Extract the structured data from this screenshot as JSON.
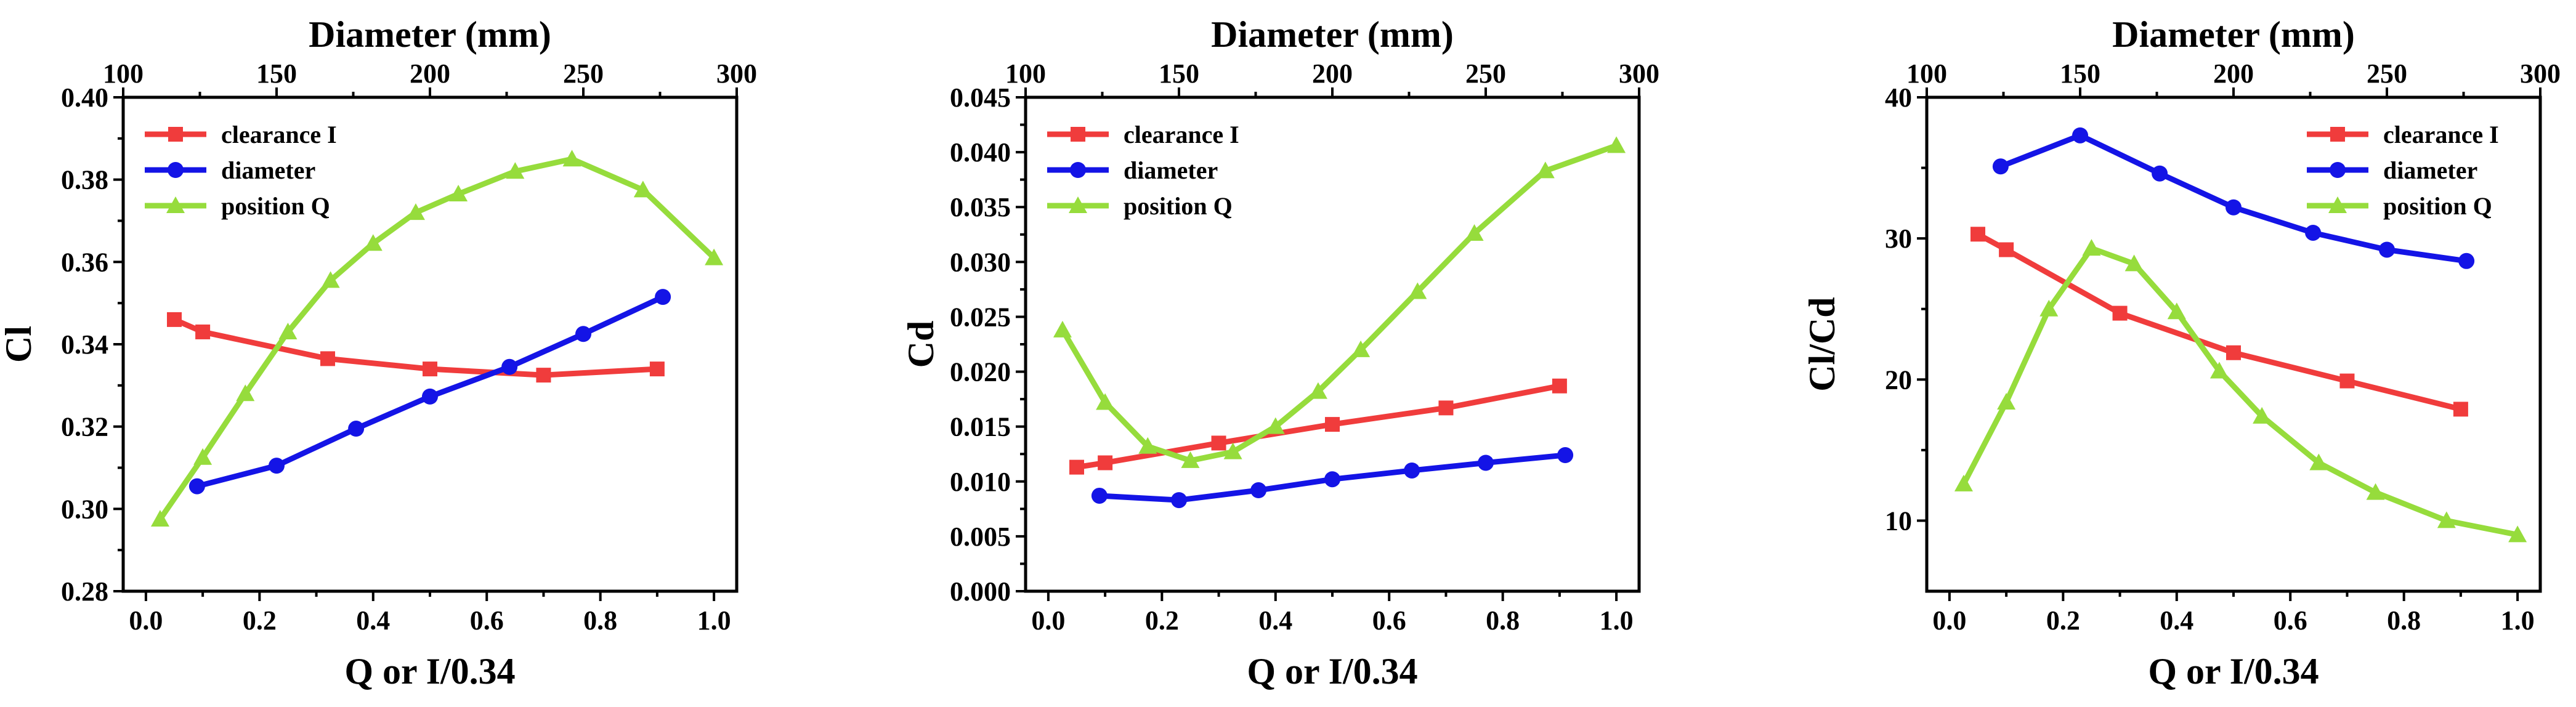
{
  "chart_data": [
    {
      "type": "line",
      "xlabel": "Q or I/0.34",
      "ylabel": "Cl",
      "top_xlabel": "Diameter (mm)",
      "xlim": [
        -0.04,
        1.04
      ],
      "ylim": [
        0.28,
        0.4
      ],
      "top_xlim": [
        100,
        300
      ],
      "xticks": [
        0.0,
        0.2,
        0.4,
        0.6,
        0.8,
        1.0
      ],
      "xtick_labels": [
        "0.0",
        "0.2",
        "0.4",
        "0.6",
        "0.8",
        "1.0"
      ],
      "yticks": [
        0.28,
        0.3,
        0.32,
        0.34,
        0.36,
        0.38,
        0.4
      ],
      "ytick_labels": [
        "0.28",
        "0.30",
        "0.32",
        "0.34",
        "0.36",
        "0.38",
        "0.40"
      ],
      "top_xticks": [
        100,
        150,
        200,
        250,
        300
      ],
      "top_xtick_labels": [
        "100",
        "150",
        "200",
        "250",
        "300"
      ],
      "legend_position": "top-left",
      "series": [
        {
          "name": "clearance I",
          "color": "#f03c3c",
          "marker": "square",
          "x": [
            0.05,
            0.1,
            0.32,
            0.5,
            0.7,
            0.9
          ],
          "y": [
            0.346,
            0.343,
            0.3365,
            0.334,
            0.3325,
            0.334
          ]
        },
        {
          "name": "diameter",
          "color": "#1414e6",
          "marker": "circle",
          "x": [
            0.09,
            0.23,
            0.37,
            0.5,
            0.64,
            0.77,
            0.91
          ],
          "y": [
            0.3055,
            0.3105,
            0.3195,
            0.3273,
            0.3345,
            0.3425,
            0.3515
          ]
        },
        {
          "name": "position Q",
          "color": "#96dc3c",
          "marker": "triangle",
          "x": [
            0.025,
            0.1,
            0.175,
            0.25,
            0.325,
            0.4,
            0.475,
            0.55,
            0.65,
            0.75,
            0.875,
            1.0
          ],
          "y": [
            0.2975,
            0.3125,
            0.328,
            0.343,
            0.3555,
            0.3645,
            0.372,
            0.3765,
            0.382,
            0.385,
            0.3775,
            0.361
          ]
        }
      ]
    },
    {
      "type": "line",
      "xlabel": "Q or I/0.34",
      "ylabel": "Cd",
      "top_xlabel": "Diameter (mm)",
      "xlim": [
        -0.04,
        1.04
      ],
      "ylim": [
        0.0,
        0.045
      ],
      "top_xlim": [
        100,
        300
      ],
      "xticks": [
        0.0,
        0.2,
        0.4,
        0.6,
        0.8,
        1.0
      ],
      "xtick_labels": [
        "0.0",
        "0.2",
        "0.4",
        "0.6",
        "0.8",
        "1.0"
      ],
      "yticks": [
        0.0,
        0.005,
        0.01,
        0.015,
        0.02,
        0.025,
        0.03,
        0.035,
        0.04,
        0.045
      ],
      "ytick_labels": [
        "0.000",
        "0.005",
        "0.010",
        "0.015",
        "0.020",
        "0.025",
        "0.030",
        "0.035",
        "0.040",
        "0.045"
      ],
      "top_xticks": [
        100,
        150,
        200,
        250,
        300
      ],
      "top_xtick_labels": [
        "100",
        "150",
        "200",
        "250",
        "300"
      ],
      "legend_position": "top-left",
      "series": [
        {
          "name": "clearance I",
          "color": "#f03c3c",
          "marker": "square",
          "x": [
            0.05,
            0.1,
            0.3,
            0.5,
            0.7,
            0.9
          ],
          "y": [
            0.0113,
            0.0117,
            0.0135,
            0.0152,
            0.0167,
            0.0187
          ]
        },
        {
          "name": "diameter",
          "color": "#1414e6",
          "marker": "circle",
          "x": [
            0.09,
            0.23,
            0.37,
            0.5,
            0.64,
            0.77,
            0.91
          ],
          "y": [
            0.0087,
            0.0083,
            0.0092,
            0.0102,
            0.011,
            0.0117,
            0.0124
          ]
        },
        {
          "name": "position Q",
          "color": "#96dc3c",
          "marker": "triangle",
          "x": [
            0.025,
            0.1,
            0.175,
            0.25,
            0.325,
            0.4,
            0.475,
            0.55,
            0.65,
            0.75,
            0.875,
            1.0
          ],
          "y": [
            0.0238,
            0.0172,
            0.0132,
            0.0119,
            0.0127,
            0.015,
            0.0182,
            0.022,
            0.0273,
            0.0326,
            0.0383,
            0.0406
          ]
        }
      ]
    },
    {
      "type": "line",
      "xlabel": "Q or I/0.34",
      "ylabel": "Cl/Cd",
      "top_xlabel": "Diameter (mm)",
      "xlim": [
        -0.04,
        1.04
      ],
      "ylim": [
        5,
        40
      ],
      "top_xlim": [
        100,
        300
      ],
      "xticks": [
        0.0,
        0.2,
        0.4,
        0.6,
        0.8,
        1.0
      ],
      "xtick_labels": [
        "0.0",
        "0.2",
        "0.4",
        "0.6",
        "0.8",
        "1.0"
      ],
      "yticks": [
        10,
        20,
        30,
        40
      ],
      "ytick_labels": [
        "10",
        "20",
        "30",
        "40"
      ],
      "top_xticks": [
        100,
        150,
        200,
        250,
        300
      ],
      "top_xtick_labels": [
        "100",
        "150",
        "200",
        "250",
        "300"
      ],
      "legend_position": "top-right",
      "series": [
        {
          "name": "clearance I",
          "color": "#f03c3c",
          "marker": "square",
          "x": [
            0.05,
            0.1,
            0.3,
            0.5,
            0.7,
            0.9
          ],
          "y": [
            30.3,
            29.2,
            24.7,
            21.9,
            19.9,
            17.9
          ]
        },
        {
          "name": "diameter",
          "color": "#1414e6",
          "marker": "circle",
          "x": [
            0.09,
            0.23,
            0.37,
            0.5,
            0.64,
            0.77,
            0.91
          ],
          "y": [
            35.1,
            37.3,
            34.6,
            32.2,
            30.4,
            29.2,
            28.4
          ]
        },
        {
          "name": "position Q",
          "color": "#96dc3c",
          "marker": "triangle",
          "x": [
            0.025,
            0.1,
            0.175,
            0.25,
            0.325,
            0.4,
            0.475,
            0.55,
            0.65,
            0.75,
            0.875,
            1.0
          ],
          "y": [
            12.6,
            18.4,
            25.0,
            29.3,
            28.2,
            24.8,
            20.6,
            17.4,
            14.1,
            12.0,
            10.0,
            9.0
          ]
        }
      ]
    }
  ]
}
